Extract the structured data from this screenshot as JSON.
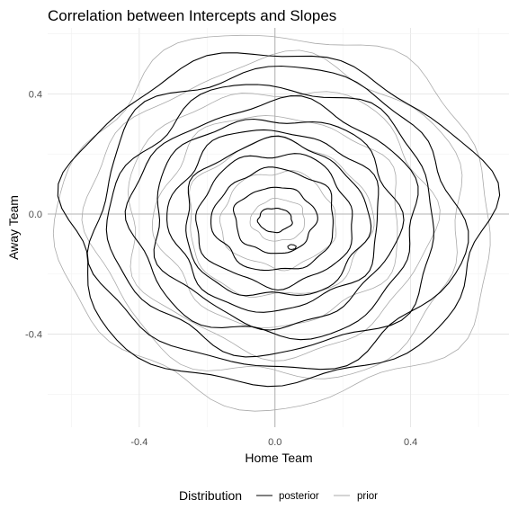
{
  "chart_data": {
    "type": "contour",
    "title": "Correlation between Intercepts and Slopes",
    "xlabel": "Home Team",
    "ylabel": "Away Team",
    "xlim": [
      -0.67,
      0.69
    ],
    "ylim": [
      -0.71,
      0.62
    ],
    "x_ticks": [
      -0.4,
      0.0,
      0.4
    ],
    "y_ticks": [
      -0.4,
      0.0,
      0.4
    ],
    "x_tick_labels": [
      "-0.4",
      "0.0",
      "0.4"
    ],
    "y_tick_labels": [
      "-0.4",
      "0.0",
      "0.4"
    ],
    "grid": true,
    "reference_lines": {
      "x": 0,
      "y": 0
    },
    "legend": {
      "title": "Distribution",
      "position": "bottom"
    },
    "series": [
      {
        "name": "posterior",
        "color": "#000000",
        "center": [
          0.0,
          -0.02
        ],
        "levels": [
          [
            0.62,
            0.55
          ],
          [
            0.54,
            0.5
          ],
          [
            0.48,
            0.445
          ],
          [
            0.42,
            0.39
          ],
          [
            0.36,
            0.345
          ],
          [
            0.31,
            0.3
          ],
          [
            0.27,
            0.26
          ],
          [
            0.23,
            0.22
          ],
          [
            0.18,
            0.17
          ],
          [
            0.12,
            0.11
          ],
          [
            0.05,
            0.04
          ]
        ]
      },
      {
        "name": "prior",
        "color": "#aaaaaa",
        "center": [
          0.01,
          -0.02
        ],
        "levels": [
          [
            0.64,
            0.62
          ],
          [
            0.55,
            0.53
          ],
          [
            0.45,
            0.44
          ],
          [
            0.36,
            0.35
          ],
          [
            0.27,
            0.26
          ],
          [
            0.17,
            0.16
          ],
          [
            0.08,
            0.07
          ]
        ]
      }
    ]
  }
}
